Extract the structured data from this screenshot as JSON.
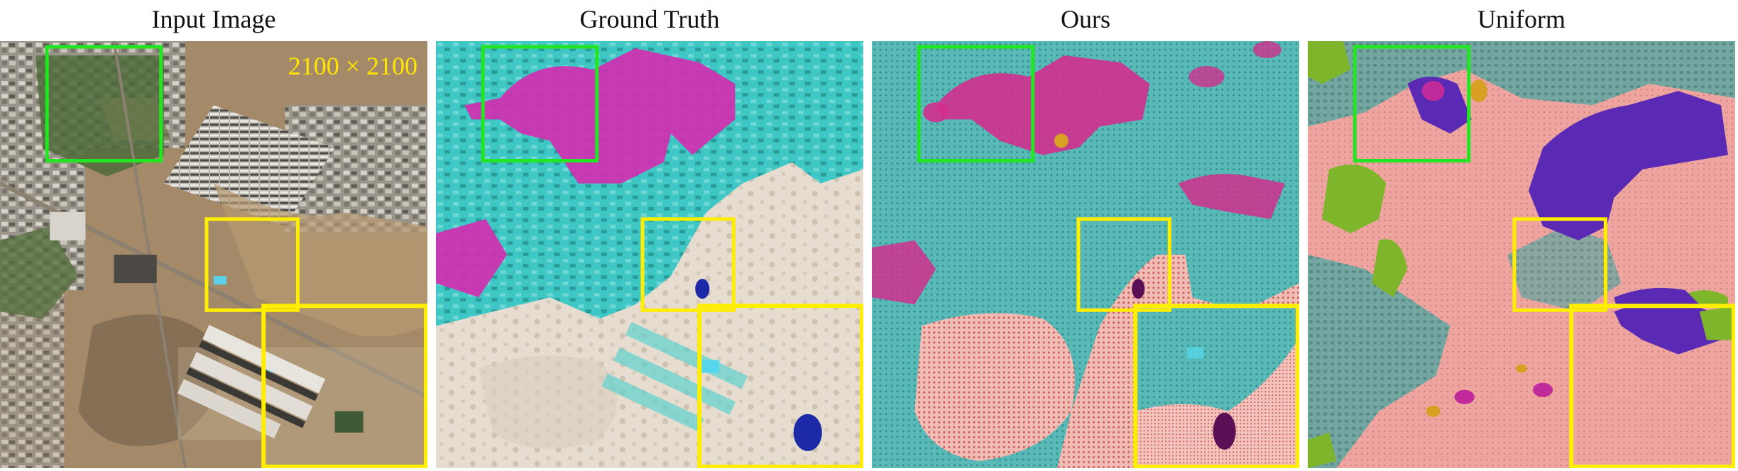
{
  "titles": {
    "input": "Input Image",
    "ground_truth": "Ground Truth",
    "ours": "Ours",
    "uniform": "Uniform"
  },
  "resolution_label": "2100 × 2100",
  "colors": {
    "green_box": "#22e622",
    "yellow_box": "#ffee00",
    "cyan_class": "#3ec7c4",
    "magenta_class": "#d12fb0",
    "bare_class": "#e6ddd0",
    "salmon_class": "#eea5a0",
    "purple_class": "#5a2ab5",
    "lime_class": "#7fb52a",
    "navy_class": "#1c2aa8"
  }
}
